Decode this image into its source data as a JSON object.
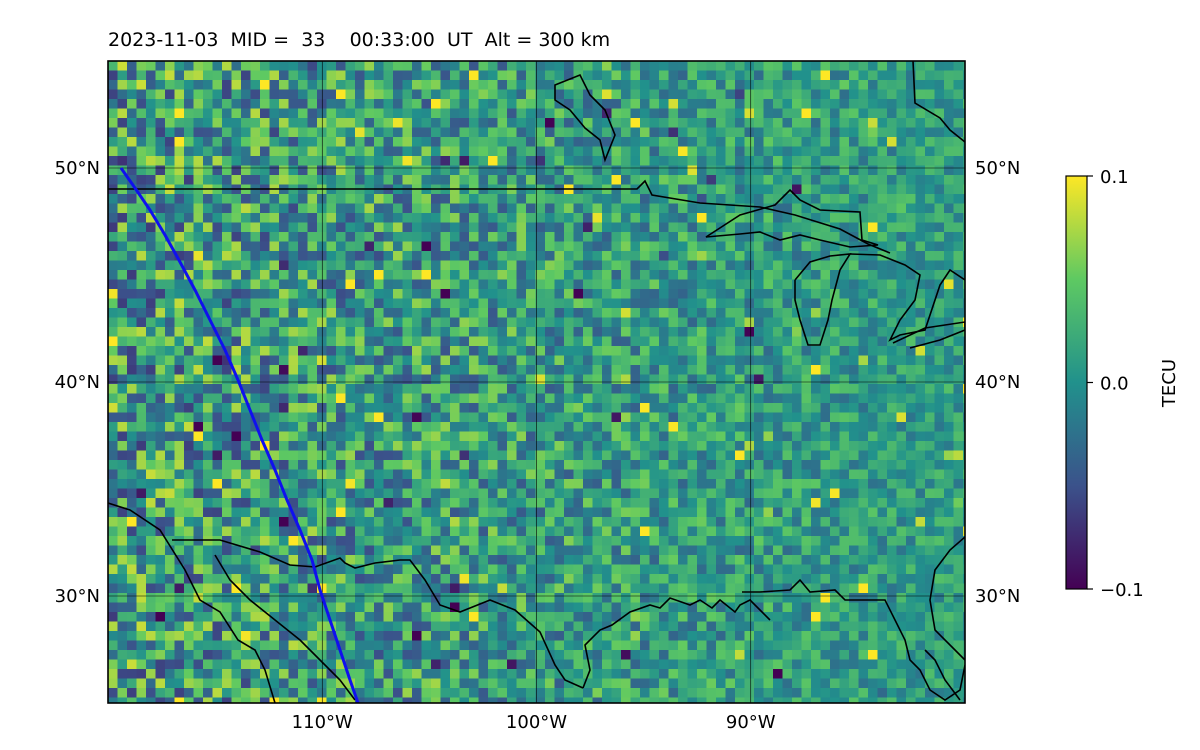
{
  "title": {
    "date": "2023-11-03",
    "mid_label": "MID =",
    "mid_value": "33",
    "time": "00:33:00",
    "time_unit": "UT",
    "alt_label": "Alt = 300 km"
  },
  "map": {
    "lon_range": [
      -120,
      -80
    ],
    "lat_range": [
      25,
      55
    ],
    "lat_ticks": [
      {
        "value": 50,
        "label": "50°N"
      },
      {
        "value": 40,
        "label": "40°N"
      },
      {
        "value": 30,
        "label": "30°N"
      }
    ],
    "lon_ticks": [
      {
        "value": -110,
        "label": "110°W"
      },
      {
        "value": -100,
        "label": "100°W"
      },
      {
        "value": -90,
        "label": "90°W"
      }
    ],
    "grid": true,
    "field": "TEC perturbation",
    "terminator_color": "#1010ee"
  },
  "colorbar": {
    "label": "TECU",
    "min": -0.1,
    "max": 0.1,
    "ticks": [
      {
        "value": 0.1,
        "label": "0.1"
      },
      {
        "value": 0.0,
        "label": "0.0"
      },
      {
        "value": -0.1,
        "label": "−0.1"
      }
    ],
    "colormap": "viridis",
    "stops": [
      "#440154",
      "#3b528b",
      "#21918c",
      "#5ec962",
      "#fde725"
    ]
  }
}
